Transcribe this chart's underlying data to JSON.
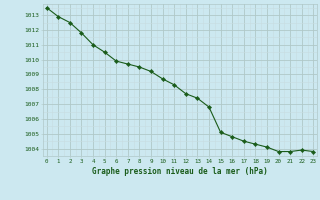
{
  "x": [
    0,
    1,
    2,
    3,
    4,
    5,
    6,
    7,
    8,
    9,
    10,
    11,
    12,
    13,
    14,
    15,
    16,
    17,
    18,
    19,
    20,
    21,
    22,
    23
  ],
  "y": [
    1013.5,
    1012.9,
    1012.5,
    1011.8,
    1011.0,
    1010.5,
    1009.9,
    1009.7,
    1009.5,
    1009.2,
    1008.7,
    1008.3,
    1007.7,
    1007.4,
    1006.8,
    1005.1,
    1004.8,
    1004.5,
    1004.3,
    1004.1,
    1003.8,
    1003.8,
    1003.9,
    1003.8
  ],
  "title": "Graphe pression niveau de la mer (hPa)",
  "bg_color": "#cce8f0",
  "grid_major_color": "#b0c8c8",
  "grid_minor_color": "#c8dce0",
  "line_color": "#1a5c1a",
  "marker_color": "#1a5c1a",
  "tick_label_color": "#1a5c1a",
  "title_color": "#1a5c1a",
  "ylim": [
    1003.5,
    1013.75
  ],
  "yticks": [
    1004,
    1005,
    1006,
    1007,
    1008,
    1009,
    1010,
    1011,
    1012,
    1013
  ],
  "xticks": [
    0,
    1,
    2,
    3,
    4,
    5,
    6,
    7,
    8,
    9,
    10,
    11,
    12,
    13,
    14,
    15,
    16,
    17,
    18,
    19,
    20,
    21,
    22,
    23
  ],
  "xlim": [
    -0.3,
    23.3
  ]
}
